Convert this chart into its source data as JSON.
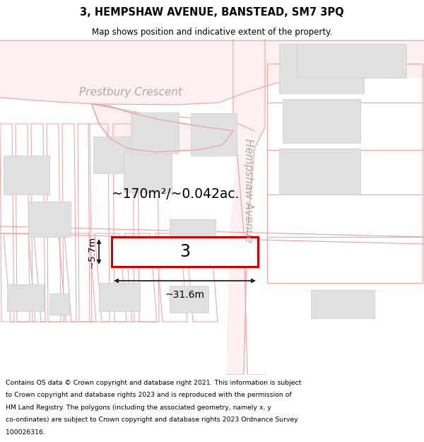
{
  "title_line1": "3, HEMPSHAW AVENUE, BANSTEAD, SM7 3PQ",
  "title_line2": "Map shows position and indicative extent of the property.",
  "map_bg": "#ffffff",
  "road_line_color": "#e8a0a0",
  "building_color": "#e0e0e0",
  "building_edge": "#cccccc",
  "street_label1": "Prestbury Crescent",
  "street_label2": "Hempshaw Avenue",
  "area_label": "~170m²/~0.042ac.",
  "width_label": "~31.6m",
  "height_label": "~5.7m",
  "plot_number": "3",
  "plot_border": "#cc0000",
  "footer_lines": [
    "Contains OS data © Crown copyright and database right 2021. This information is subject",
    "to Crown copyright and database rights 2023 and is reproduced with the permission of",
    "HM Land Registry. The polygons (including the associated geometry, namely x, y",
    "co-ordinates) are subject to Crown copyright and database rights 2023 Ordnance Survey",
    "100026316."
  ]
}
